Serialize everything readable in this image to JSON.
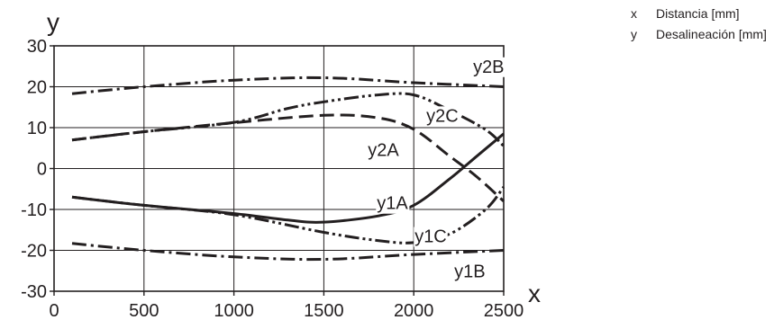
{
  "chart_data": {
    "type": "line",
    "xlabel": "x",
    "ylabel": "y",
    "xlim": [
      0,
      2500
    ],
    "ylim": [
      -30,
      30
    ],
    "x_ticks": [
      0,
      500,
      1000,
      1500,
      2000,
      2500
    ],
    "y_ticks": [
      -30,
      -20,
      -10,
      0,
      10,
      20,
      30
    ],
    "grid": true,
    "legend": [
      {
        "key": "x",
        "text": "Distancia [mm]"
      },
      {
        "key": "y",
        "text": "Desalineación [mm]"
      }
    ],
    "series": [
      {
        "name": "y2B",
        "style": "dash-dot",
        "label_pos": [
          2330,
          25
        ],
        "points": [
          [
            100,
            18.3
          ],
          [
            500,
            20
          ],
          [
            1000,
            21.6
          ],
          [
            1500,
            22.2
          ],
          [
            2000,
            21
          ],
          [
            2500,
            20
          ]
        ]
      },
      {
        "name": "y2C",
        "style": "dash-dot-dot",
        "label_pos": [
          2070,
          13
        ],
        "points": [
          [
            100,
            7
          ],
          [
            500,
            9
          ],
          [
            1000,
            11.3
          ],
          [
            1300,
            14.7
          ],
          [
            1500,
            16.3
          ],
          [
            1800,
            18
          ],
          [
            2000,
            18
          ],
          [
            2200,
            14.2
          ],
          [
            2400,
            9.5
          ],
          [
            2500,
            5.5
          ]
        ]
      },
      {
        "name": "y2A",
        "style": "dashed",
        "label_pos": [
          1745,
          4.6
        ],
        "points": [
          [
            100,
            7
          ],
          [
            500,
            9
          ],
          [
            1000,
            11.2
          ],
          [
            1500,
            13
          ],
          [
            1800,
            12.4
          ],
          [
            2000,
            9.6
          ],
          [
            2200,
            3
          ],
          [
            2350,
            -2
          ],
          [
            2500,
            -8
          ]
        ]
      },
      {
        "name": "y1A",
        "style": "solid",
        "label_pos": [
          1795,
          -8.4
        ],
        "points": [
          [
            100,
            -7
          ],
          [
            500,
            -9
          ],
          [
            1000,
            -11
          ],
          [
            1300,
            -12.6
          ],
          [
            1500,
            -13.1
          ],
          [
            1800,
            -11.6
          ],
          [
            2000,
            -9
          ],
          [
            2200,
            -2.5
          ],
          [
            2350,
            3
          ],
          [
            2500,
            8.5
          ]
        ]
      },
      {
        "name": "y1C",
        "style": "dash-dot-dot",
        "label_pos": [
          2005,
          -16.5
        ],
        "points": [
          [
            100,
            -7
          ],
          [
            500,
            -9
          ],
          [
            1000,
            -11.3
          ],
          [
            1500,
            -15.6
          ],
          [
            1800,
            -17.6
          ],
          [
            2000,
            -18.1
          ],
          [
            2200,
            -16
          ],
          [
            2400,
            -10
          ],
          [
            2500,
            -4.5
          ]
        ]
      },
      {
        "name": "y1B",
        "style": "dash-dot",
        "label_pos": [
          2225,
          -25
        ],
        "points": [
          [
            100,
            -18.3
          ],
          [
            500,
            -20
          ],
          [
            1000,
            -21.6
          ],
          [
            1500,
            -22.2
          ],
          [
            2000,
            -21
          ],
          [
            2500,
            -20
          ]
        ]
      }
    ]
  }
}
